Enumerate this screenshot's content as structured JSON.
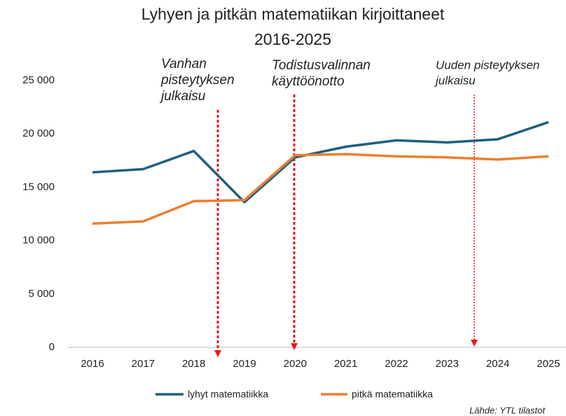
{
  "chart_data": {
    "type": "line",
    "title": [
      "Lyhyen ja pitkän matematiikan kirjoittaneet",
      "2016-2025"
    ],
    "categories": [
      "2016",
      "2017",
      "2018",
      "2019",
      "2020",
      "2021",
      "2022",
      "2023",
      "2024",
      "2025"
    ],
    "series": [
      {
        "name": "lyhyt matematiikka",
        "color": "#1f5f7e",
        "values": [
          16400,
          16700,
          18400,
          13600,
          17800,
          18800,
          19400,
          19200,
          19500,
          21100
        ]
      },
      {
        "name": "pitkä matematiikka",
        "color": "#ed7d31",
        "values": [
          11600,
          11800,
          13700,
          13800,
          18000,
          18100,
          17900,
          17800,
          17600,
          17900
        ]
      }
    ],
    "ylim": [
      0,
      25000
    ],
    "yticks": [
      0,
      {
        "value": 5000,
        "label": "5 000"
      },
      {
        "value": 10000,
        "label": "10 000"
      },
      {
        "value": 15000,
        "label": "15 000"
      },
      {
        "value": 20000,
        "label": "20 000"
      },
      {
        "value": 25000,
        "label": "25 000"
      }
    ],
    "grid": false,
    "annotations": [
      {
        "lines": [
          "Vanhan",
          "pisteytyksen",
          "julkaisu"
        ],
        "color": "#e8191c"
      },
      {
        "lines": [
          "Todistusvalinnan",
          "käyttöönotto"
        ],
        "color": "#e8191c"
      },
      {
        "lines": [
          "Uuden pisteytyksen",
          "julkaisu"
        ],
        "color": "#e8191c"
      }
    ],
    "source": "Lähde: YTL tilastot"
  }
}
